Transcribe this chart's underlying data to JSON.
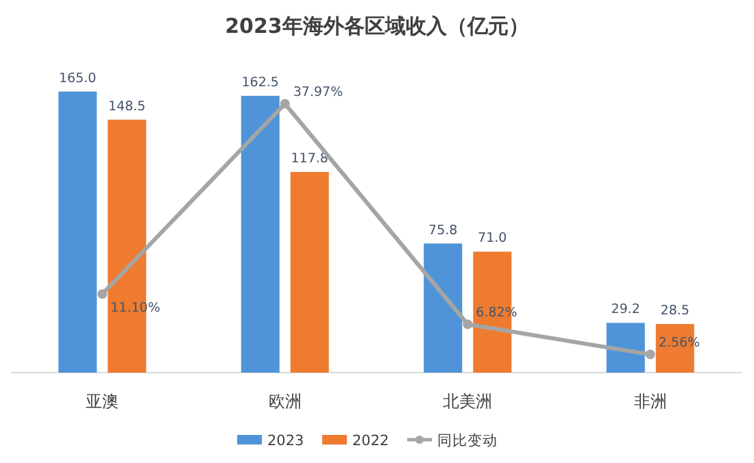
{
  "chart_data": {
    "type": "bar",
    "title": "2023年海外各区域收入（亿元）",
    "categories": [
      "亚澳",
      "欧洲",
      "北美洲",
      "非洲"
    ],
    "series": [
      {
        "name": "2023",
        "color": "#4f94d8",
        "values": [
          165.0,
          162.5,
          75.8,
          29.2
        ],
        "value_labels": [
          "165.0",
          "162.5",
          "75.8",
          "29.2"
        ]
      },
      {
        "name": "2022",
        "color": "#ee7b30",
        "values": [
          148.5,
          117.8,
          71.0,
          28.5
        ],
        "value_labels": [
          "148.5",
          "117.8",
          "71.0",
          "28.5"
        ]
      },
      {
        "name": "同比变动",
        "type": "line",
        "axis": "y2",
        "color": "#a5a5a5",
        "marker": "circle",
        "values": [
          11.1,
          37.97,
          6.82,
          2.56
        ],
        "value_labels": [
          "11.10%",
          "37.97%",
          "6.82%",
          "2.56%"
        ]
      }
    ],
    "tick_labels": "x",
    "legend": "bottom"
  }
}
